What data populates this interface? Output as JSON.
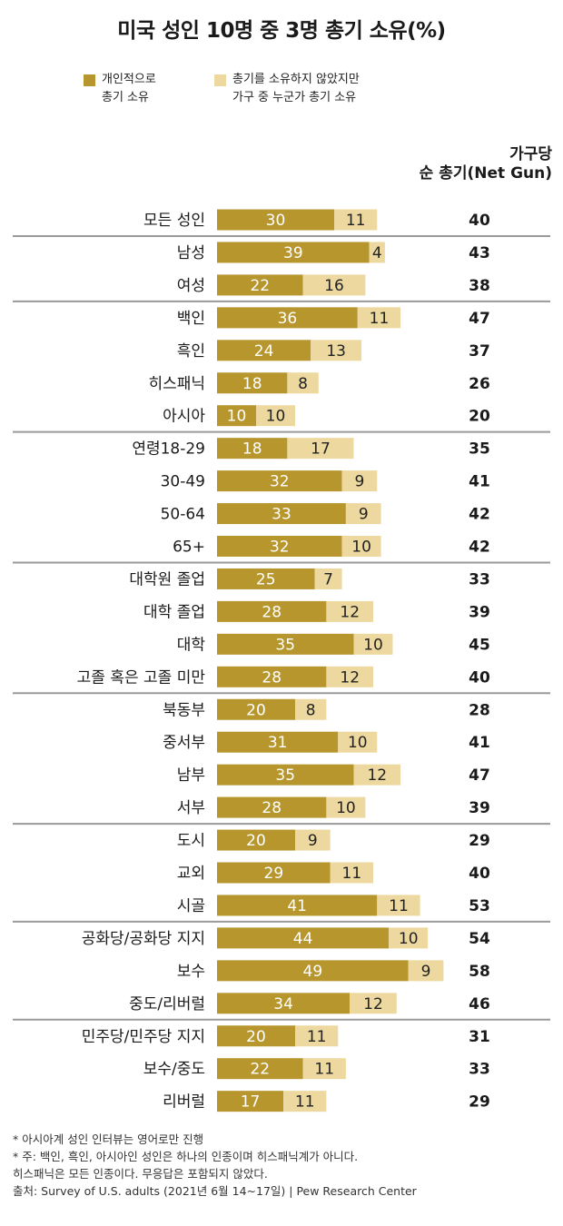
{
  "title": "미국 성인 10명 중 3명 총기 소유(%)",
  "legend": [
    {
      "label": "개인적으로\n총기 소유",
      "color": "#B8962E"
    },
    {
      "label": "총기를 소유하지 않았지만\n가구 중 누군가 총기 소유",
      "color": "#EDD9A0"
    }
  ],
  "net_header": [
    "가구당",
    "순 총기(Net Gun)"
  ],
  "colors": {
    "personal": "#B8962E",
    "household": "#EDD9A0",
    "divider": "#9a9a9a",
    "value_text": "#ffffff",
    "household_text": "#222222"
  },
  "chart_data": {
    "type": "bar",
    "stacked": true,
    "orientation": "horizontal",
    "categories": [
      "모든 성인",
      "남성",
      "여성",
      "백인",
      "흑인",
      "히스패닉",
      "아시아",
      "연령18-29",
      "30-49",
      "50-64",
      "65+",
      "대학원 졸업",
      "대학 졸업",
      "대학",
      "고졸 혹은 고졸 미만",
      "북동부",
      "중서부",
      "남부",
      "서부",
      "도시",
      "교외",
      "시골",
      "공화당/공화당 지지",
      "보수",
      "중도/리버럴",
      "민주당/민주당 지지",
      "보수/중도",
      "리버럴"
    ],
    "series": [
      {
        "name": "개인적으로 총기 소유",
        "values": [
          30,
          39,
          22,
          36,
          24,
          18,
          10,
          18,
          32,
          33,
          32,
          25,
          28,
          35,
          28,
          20,
          31,
          35,
          28,
          20,
          29,
          41,
          44,
          49,
          34,
          20,
          22,
          17
        ]
      },
      {
        "name": "총기를 소유하지 않았지만 가구 중 누군가 총기 소유",
        "values": [
          11,
          4,
          16,
          11,
          13,
          8,
          10,
          17,
          9,
          9,
          10,
          7,
          12,
          10,
          12,
          8,
          10,
          12,
          10,
          9,
          11,
          11,
          10,
          9,
          12,
          11,
          11,
          11
        ]
      }
    ],
    "net": [
      40,
      43,
      38,
      47,
      37,
      26,
      20,
      35,
      41,
      42,
      42,
      33,
      39,
      45,
      40,
      28,
      41,
      47,
      39,
      29,
      40,
      53,
      54,
      58,
      46,
      31,
      33,
      29
    ],
    "groups": [
      [
        0
      ],
      [
        1,
        2
      ],
      [
        3,
        4,
        5,
        6
      ],
      [
        7,
        8,
        9,
        10
      ],
      [
        11,
        12,
        13,
        14
      ],
      [
        15,
        16,
        17,
        18
      ],
      [
        19,
        20,
        21
      ],
      [
        22,
        23,
        24
      ],
      [
        25,
        26,
        27
      ]
    ]
  },
  "footnotes": [
    "* 아시아계 성인 인터뷰는 영어로만 진행",
    "* 주: 백인, 흑인, 아시아인 성인은 하나의 인종이며 히스패닉계가 아니다.",
    "히스패닉은 모든 인종이다. 무응답은 포함되지 않았다.",
    "출처: Survey of U.S. adults (2021년 6월 14~17일)  |  Pew Research Center"
  ]
}
